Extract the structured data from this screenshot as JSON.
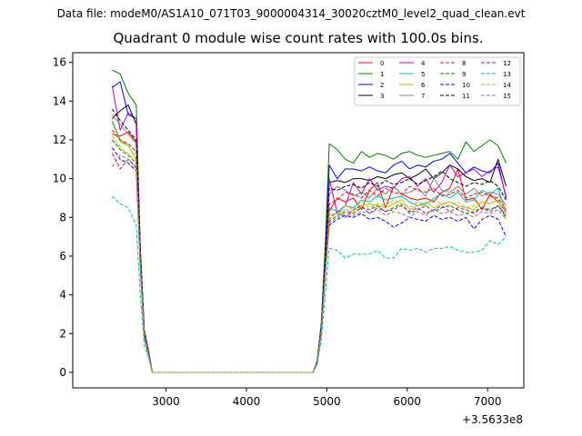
{
  "figure": {
    "suptitle": "Data file: modeM0/AS1A10_071T03_9000004314_30020cztM0_level2_quad_clean.evt",
    "title": "Quadrant 0 module wise count rates with 100.0s bins."
  },
  "chart_data": {
    "type": "line",
    "title": "Quadrant 0 module wise count rates with 100.0s bins.",
    "xlabel": "",
    "ylabel": "",
    "x_offset_label": "+3.5633e8",
    "xlim": [
      1840,
      7450
    ],
    "ylim": [
      -0.8,
      16.5
    ],
    "xticks": [
      3000,
      4000,
      5000,
      6000,
      7000
    ],
    "yticks": [
      0,
      2,
      4,
      6,
      8,
      10,
      12,
      14,
      16
    ],
    "grid": false,
    "legend": {
      "placement": "top-right",
      "columns": 4
    },
    "x": [
      2330,
      2430,
      2530,
      2630,
      2680,
      2730,
      2780,
      2830,
      4830,
      4880,
      4930,
      4980,
      5030,
      5130,
      5230,
      5330,
      5430,
      5530,
      5630,
      5730,
      5830,
      5930,
      6030,
      6130,
      6230,
      6330,
      6430,
      6530,
      6630,
      6730,
      6830,
      6930,
      7030,
      7130,
      7230
    ],
    "series": [
      {
        "name": "0",
        "color": "#ff0000",
        "dash": "solid",
        "values": [
          12.3,
          12.2,
          12.4,
          11.9,
          6.0,
          2.0,
          1.0,
          0,
          0,
          0.5,
          2.2,
          5.5,
          8.3,
          9.0,
          8.8,
          9.0,
          8.4,
          9.4,
          9.8,
          8.5,
          9.6,
          9.2,
          9.0,
          8.9,
          9.0,
          8.8,
          9.3,
          9.5,
          10.5,
          8.9,
          9.0,
          8.4,
          9.2,
          8.8,
          8.3
        ]
      },
      {
        "name": "1",
        "color": "#008000",
        "dash": "solid",
        "values": [
          15.6,
          15.4,
          14.4,
          13.8,
          6.5,
          2.2,
          1.2,
          0,
          0,
          0.6,
          2.5,
          6.5,
          11.8,
          11.5,
          11.0,
          10.8,
          11.4,
          11.1,
          11.3,
          11.2,
          11.0,
          11.3,
          11.4,
          11.2,
          11.1,
          11.2,
          11.3,
          11.4,
          11.0,
          11.9,
          11.4,
          11.7,
          12.0,
          11.7,
          10.8
        ]
      },
      {
        "name": "2",
        "color": "#0000ff",
        "dash": "solid",
        "values": [
          14.7,
          15.0,
          13.3,
          13.1,
          6.3,
          2.1,
          1.1,
          0,
          0,
          0.6,
          2.4,
          6.0,
          10.7,
          10.0,
          10.5,
          10.5,
          10.4,
          10.6,
          10.4,
          10.3,
          10.7,
          10.9,
          10.5,
          10.7,
          10.6,
          10.9,
          11.0,
          11.3,
          10.8,
          10.3,
          10.6,
          10.4,
          10.3,
          10.8,
          9.0
        ]
      },
      {
        "name": "3",
        "color": "#000000",
        "dash": "solid",
        "values": [
          13.1,
          13.5,
          13.8,
          12.8,
          6.2,
          2.1,
          1.1,
          0,
          0,
          0.5,
          2.3,
          5.8,
          9.8,
          9.9,
          9.8,
          10.0,
          10.0,
          9.9,
          10.1,
          10.0,
          10.2,
          10.3,
          10.0,
          10.2,
          10.5,
          10.0,
          10.3,
          10.7,
          10.5,
          10.1,
          9.9,
          10.0,
          9.8,
          11.0,
          9.6
        ]
      },
      {
        "name": "4",
        "color": "#bf00bf",
        "dash": "solid",
        "values": [
          14.8,
          12.5,
          13.4,
          13.1,
          6.3,
          2.1,
          1.1,
          0,
          0,
          0.5,
          2.3,
          5.6,
          10.0,
          8.2,
          8.6,
          9.8,
          9.2,
          10.0,
          9.4,
          9.6,
          9.5,
          10.0,
          10.1,
          9.6,
          10.0,
          9.3,
          9.8,
          10.7,
          10.1,
          10.3,
          10.5,
          10.1,
          10.4,
          10.6,
          9.1
        ]
      },
      {
        "name": "5",
        "color": "#00bfbf",
        "dash": "solid",
        "values": [
          13.0,
          12.0,
          11.7,
          11.0,
          5.8,
          2.0,
          1.0,
          0,
          0,
          0.5,
          2.1,
          5.3,
          8.5,
          8.3,
          8.6,
          8.5,
          8.9,
          8.8,
          9.1,
          8.9,
          9.0,
          9.1,
          8.8,
          8.6,
          8.7,
          9.0,
          9.2,
          9.0,
          9.3,
          8.8,
          8.9,
          9.4,
          9.2,
          9.5,
          8.2
        ]
      },
      {
        "name": "6",
        "color": "#bfbf00",
        "dash": "solid",
        "values": [
          12.9,
          11.9,
          11.7,
          11.0,
          5.7,
          1.9,
          1.0,
          0,
          0,
          0.5,
          2.1,
          5.2,
          8.1,
          8.2,
          8.4,
          8.3,
          8.6,
          8.7,
          8.6,
          8.5,
          8.7,
          8.9,
          8.4,
          8.6,
          8.8,
          8.5,
          8.7,
          8.8,
          8.6,
          8.5,
          8.4,
          8.8,
          8.7,
          8.9,
          7.9
        ]
      },
      {
        "name": "7",
        "color": "#808080",
        "dash": "solid",
        "values": [
          13.3,
          12.8,
          12.3,
          11.8,
          6.0,
          2.0,
          1.0,
          0,
          0,
          0.5,
          2.2,
          5.5,
          9.2,
          9.6,
          9.4,
          9.1,
          9.3,
          9.0,
          9.5,
          9.2,
          9.6,
          9.2,
          9.3,
          9.5,
          9.1,
          10.0,
          9.4,
          9.3,
          9.6,
          9.2,
          9.5,
          9.1,
          9.3,
          9.2,
          8.6
        ]
      },
      {
        "name": "8",
        "color": "#ff0000",
        "dash": "dashed",
        "values": [
          12.5,
          12.0,
          11.8,
          11.4,
          5.9,
          2.0,
          1.0,
          0,
          0,
          0.5,
          2.2,
          5.4,
          8.7,
          8.9,
          9.3,
          9.2,
          9.0,
          9.4,
          9.1,
          9.5,
          9.3,
          9.2,
          9.6,
          9.4,
          9.3,
          9.5,
          9.1,
          9.2,
          9.4,
          9.0,
          9.2,
          9.3,
          9.1,
          9.0,
          8.4
        ]
      },
      {
        "name": "9",
        "color": "#008000",
        "dash": "dashed",
        "values": [
          12.0,
          11.5,
          11.2,
          10.8,
          5.6,
          1.9,
          1.0,
          0,
          0,
          0.5,
          2.1,
          5.1,
          7.8,
          8.1,
          8.3,
          8.2,
          8.5,
          8.4,
          8.6,
          8.3,
          8.5,
          8.7,
          8.2,
          8.4,
          8.6,
          8.3,
          8.5,
          8.6,
          8.4,
          8.2,
          8.3,
          8.5,
          8.4,
          8.6,
          8.0
        ]
      },
      {
        "name": "10",
        "color": "#0000ff",
        "dash": "dashed",
        "values": [
          11.6,
          11.0,
          10.8,
          10.4,
          5.4,
          1.8,
          0.9,
          0,
          0,
          0.5,
          2.0,
          5.0,
          7.6,
          7.9,
          8.1,
          8.0,
          8.2,
          7.9,
          8.0,
          7.8,
          7.5,
          7.7,
          8.0,
          7.9,
          7.8,
          8.1,
          7.9,
          8.0,
          7.8,
          8.0,
          7.4,
          7.9,
          8.1,
          7.9,
          7.0
        ]
      },
      {
        "name": "11",
        "color": "#000000",
        "dash": "dashed",
        "values": [
          13.6,
          13.0,
          12.5,
          12.0,
          6.1,
          2.0,
          1.0,
          0,
          0,
          0.5,
          2.2,
          5.6,
          9.5,
          9.4,
          9.6,
          9.7,
          9.5,
          9.8,
          9.6,
          9.9,
          9.7,
          9.8,
          10.0,
          9.7,
          9.9,
          10.1,
          10.4,
          10.0,
          9.8,
          9.6,
          9.8,
          9.7,
          9.9,
          9.6,
          8.9
        ]
      },
      {
        "name": "12",
        "color": "#bf00bf",
        "dash": "dashed",
        "values": [
          11.3,
          10.5,
          11.0,
          10.6,
          5.5,
          1.8,
          0.9,
          0,
          0,
          0.5,
          2.0,
          5.0,
          7.9,
          8.3,
          8.0,
          8.4,
          8.6,
          8.2,
          8.5,
          8.3,
          8.4,
          8.6,
          8.3,
          8.5,
          8.2,
          8.4,
          8.6,
          8.3,
          8.5,
          8.4,
          8.2,
          8.5,
          8.3,
          8.6,
          8.1
        ]
      },
      {
        "name": "13",
        "color": "#00bfbf",
        "dash": "dashed",
        "values": [
          9.1,
          8.7,
          8.5,
          7.6,
          4.0,
          1.4,
          0.8,
          0,
          0,
          0.4,
          1.6,
          4.0,
          6.4,
          6.3,
          5.9,
          6.1,
          6.1,
          6.1,
          6.3,
          5.9,
          5.9,
          6.4,
          6.3,
          6.4,
          6.2,
          6.4,
          6.4,
          6.5,
          6.3,
          6.2,
          6.2,
          6.3,
          6.8,
          6.6,
          7.0
        ]
      },
      {
        "name": "14",
        "color": "#bfbf00",
        "dash": "dashed",
        "values": [
          12.2,
          11.6,
          11.3,
          10.9,
          5.6,
          1.9,
          1.0,
          0,
          0,
          0.5,
          2.1,
          5.2,
          8.0,
          8.2,
          8.6,
          8.4,
          8.8,
          8.5,
          8.7,
          8.6,
          8.9,
          8.7,
          8.5,
          8.8,
          8.6,
          8.9,
          8.7,
          8.6,
          8.8,
          8.5,
          8.6,
          8.8,
          8.7,
          8.9,
          8.2
        ]
      },
      {
        "name": "15",
        "color": "#808080",
        "dash": "dashed",
        "values": [
          10.6,
          11.2,
          11.0,
          10.5,
          5.4,
          1.8,
          0.9,
          0,
          0,
          0.5,
          2.0,
          5.0,
          7.7,
          8.0,
          8.2,
          8.1,
          8.3,
          8.2,
          8.4,
          8.1,
          8.3,
          8.2,
          8.0,
          8.3,
          8.1,
          8.4,
          8.2,
          8.3,
          8.1,
          8.2,
          8.0,
          8.3,
          8.2,
          8.4,
          7.9
        ]
      }
    ]
  }
}
